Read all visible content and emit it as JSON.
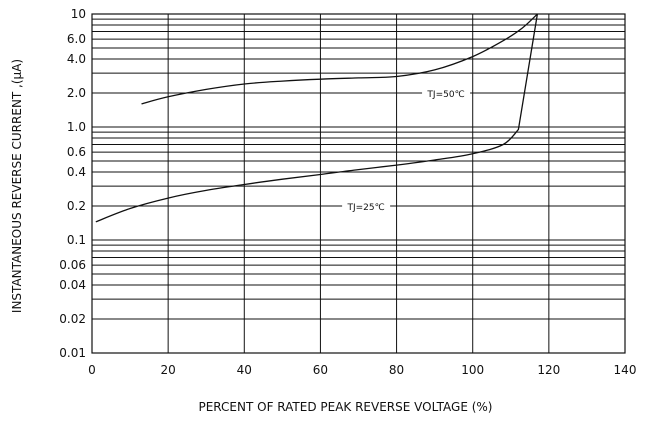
{
  "chart_data": {
    "type": "line",
    "xlabel": "PERCENT OF RATED PEAK REVERSE VOLTAGE (%)",
    "ylabel": "INSTANTANEOUS REVERSE CURRENT ,(μA)",
    "xlim": [
      0,
      140
    ],
    "ylim": [
      0.01,
      10
    ],
    "yscale": "log",
    "grid": true,
    "x_ticks": [
      0,
      20,
      40,
      60,
      80,
      100,
      120,
      140
    ],
    "y_ticks": [
      {
        "value": 0.01,
        "label": "0.01"
      },
      {
        "value": 0.02,
        "label": "0.02"
      },
      {
        "value": 0.04,
        "label": "0.04"
      },
      {
        "value": 0.06,
        "label": "0.06"
      },
      {
        "value": 0.1,
        "label": "0.1"
      },
      {
        "value": 0.2,
        "label": "0.2"
      },
      {
        "value": 0.4,
        "label": "0.4"
      },
      {
        "value": 0.6,
        "label": "0.6"
      },
      {
        "value": 1.0,
        "label": "1.0"
      },
      {
        "value": 2.0,
        "label": "2.0"
      },
      {
        "value": 4.0,
        "label": "4.0"
      },
      {
        "value": 6.0,
        "label": "6.0"
      },
      {
        "value": 10,
        "label": "10"
      }
    ],
    "series": [
      {
        "name": "TJ=50℃",
        "x": [
          13,
          20,
          30,
          40,
          50,
          60,
          70,
          80,
          90,
          100,
          108,
          113,
          117
        ],
        "y": [
          1.6,
          1.85,
          2.15,
          2.4,
          2.55,
          2.65,
          2.72,
          2.8,
          3.2,
          4.2,
          5.8,
          7.5,
          10
        ]
      },
      {
        "name": "TJ=25℃",
        "x": [
          1,
          10,
          20,
          30,
          40,
          50,
          60,
          70,
          80,
          90,
          100,
          108,
          112,
          117
        ],
        "y": [
          0.145,
          0.19,
          0.235,
          0.275,
          0.31,
          0.345,
          0.38,
          0.42,
          0.46,
          0.51,
          0.58,
          0.7,
          0.95,
          10
        ]
      }
    ]
  }
}
